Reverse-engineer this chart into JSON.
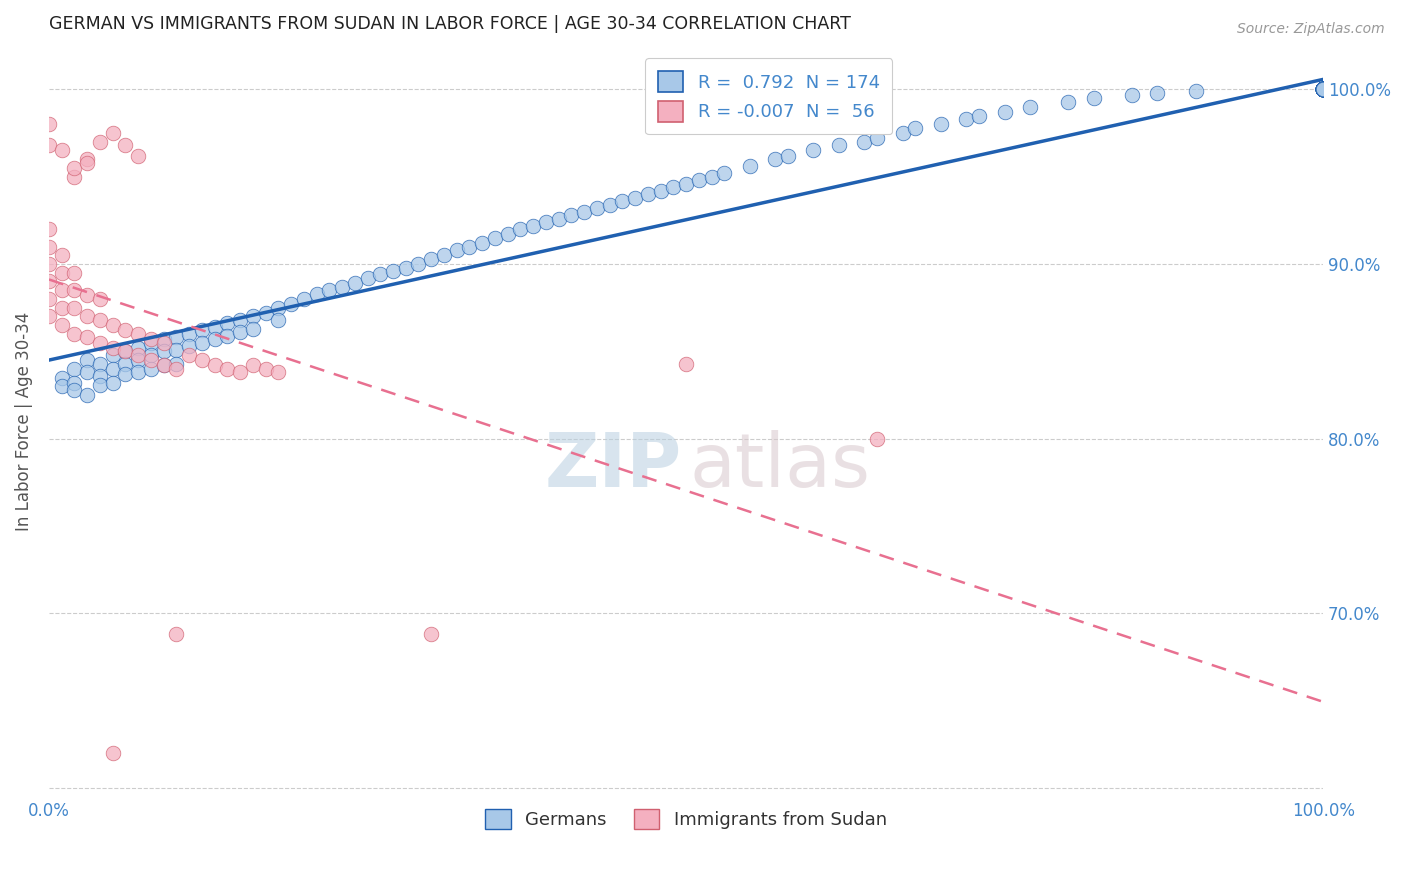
{
  "title": "GERMAN VS IMMIGRANTS FROM SUDAN IN LABOR FORCE | AGE 30-34 CORRELATION CHART",
  "source": "Source: ZipAtlas.com",
  "ylabel": "In Labor Force | Age 30-34",
  "legend_entries": [
    {
      "label": "R =  0.792  N = 174"
    },
    {
      "label": "R = -0.007  N =  56"
    }
  ],
  "legend_bottom": [
    "Germans",
    "Immigrants from Sudan"
  ],
  "german_color": "#a8c8e8",
  "sudan_color": "#f4b0c0",
  "trend_german_color": "#2060b0",
  "trend_sudan_color": "#e87090",
  "watermark_zip": "ZIP",
  "watermark_atlas": "atlas",
  "background_color": "#ffffff",
  "grid_color": "#cccccc",
  "title_color": "#222222",
  "axis_label_color": "#555555",
  "right_axis_color": "#4488cc",
  "bottom_axis_color": "#4488cc",
  "legend_text_color": "#4488cc",
  "xlim": [
    0.0,
    1.0
  ],
  "ylim": [
    0.595,
    1.025
  ],
  "german_x": [
    0.01,
    0.01,
    0.02,
    0.02,
    0.02,
    0.03,
    0.03,
    0.03,
    0.04,
    0.04,
    0.04,
    0.05,
    0.05,
    0.05,
    0.06,
    0.06,
    0.06,
    0.07,
    0.07,
    0.07,
    0.08,
    0.08,
    0.08,
    0.09,
    0.09,
    0.09,
    0.1,
    0.1,
    0.1,
    0.11,
    0.11,
    0.12,
    0.12,
    0.13,
    0.13,
    0.14,
    0.14,
    0.15,
    0.15,
    0.16,
    0.16,
    0.17,
    0.18,
    0.18,
    0.19,
    0.2,
    0.21,
    0.22,
    0.23,
    0.24,
    0.25,
    0.26,
    0.27,
    0.28,
    0.29,
    0.3,
    0.31,
    0.32,
    0.33,
    0.34,
    0.35,
    0.36,
    0.37,
    0.38,
    0.39,
    0.4,
    0.41,
    0.42,
    0.43,
    0.44,
    0.45,
    0.46,
    0.47,
    0.48,
    0.49,
    0.5,
    0.51,
    0.52,
    0.53,
    0.55,
    0.57,
    0.58,
    0.6,
    0.62,
    0.64,
    0.65,
    0.67,
    0.68,
    0.7,
    0.72,
    0.73,
    0.75,
    0.77,
    0.8,
    0.82,
    0.85,
    0.87,
    0.9,
    1.0,
    1.0,
    1.0,
    1.0,
    1.0,
    1.0,
    1.0,
    1.0,
    1.0,
    1.0,
    1.0,
    1.0,
    1.0,
    1.0,
    1.0,
    1.0,
    1.0,
    1.0,
    1.0,
    1.0,
    1.0,
    1.0,
    1.0,
    1.0,
    1.0,
    1.0,
    1.0,
    1.0,
    1.0,
    1.0,
    1.0,
    1.0,
    1.0,
    1.0,
    1.0,
    1.0,
    1.0,
    1.0,
    1.0,
    1.0,
    1.0,
    1.0,
    1.0,
    1.0,
    1.0,
    1.0,
    1.0,
    1.0,
    1.0,
    1.0,
    1.0,
    1.0,
    1.0,
    1.0,
    1.0,
    1.0,
    1.0,
    1.0,
    1.0,
    1.0,
    1.0,
    1.0,
    1.0,
    1.0,
    1.0,
    1.0,
    1.0,
    1.0,
    1.0,
    1.0,
    1.0,
    1.0,
    1.0,
    1.0,
    1.0,
    1.0
  ],
  "german_y": [
    0.835,
    0.83,
    0.84,
    0.832,
    0.828,
    0.845,
    0.838,
    0.825,
    0.843,
    0.836,
    0.831,
    0.848,
    0.84,
    0.832,
    0.85,
    0.843,
    0.837,
    0.852,
    0.845,
    0.838,
    0.855,
    0.848,
    0.84,
    0.857,
    0.85,
    0.842,
    0.858,
    0.851,
    0.843,
    0.86,
    0.853,
    0.862,
    0.855,
    0.864,
    0.857,
    0.866,
    0.859,
    0.868,
    0.861,
    0.87,
    0.863,
    0.872,
    0.875,
    0.868,
    0.877,
    0.88,
    0.883,
    0.885,
    0.887,
    0.889,
    0.892,
    0.894,
    0.896,
    0.898,
    0.9,
    0.903,
    0.905,
    0.908,
    0.91,
    0.912,
    0.915,
    0.917,
    0.92,
    0.922,
    0.924,
    0.926,
    0.928,
    0.93,
    0.932,
    0.934,
    0.936,
    0.938,
    0.94,
    0.942,
    0.944,
    0.946,
    0.948,
    0.95,
    0.952,
    0.956,
    0.96,
    0.962,
    0.965,
    0.968,
    0.97,
    0.972,
    0.975,
    0.978,
    0.98,
    0.983,
    0.985,
    0.987,
    0.99,
    0.993,
    0.995,
    0.997,
    0.998,
    0.999,
    1.0,
    1.0,
    1.0,
    1.0,
    1.0,
    1.0,
    1.0,
    1.0,
    1.0,
    1.0,
    1.0,
    1.0,
    1.0,
    1.0,
    1.0,
    1.0,
    1.0,
    1.0,
    1.0,
    1.0,
    1.0,
    1.0,
    1.0,
    1.0,
    1.0,
    1.0,
    1.0,
    1.0,
    1.0,
    1.0,
    1.0,
    1.0,
    1.0,
    1.0,
    1.0,
    1.0,
    1.0,
    1.0,
    1.0,
    1.0,
    1.0,
    1.0,
    1.0,
    1.0,
    1.0,
    1.0,
    1.0,
    1.0,
    1.0,
    1.0,
    1.0,
    1.0,
    1.0,
    1.0,
    1.0,
    1.0,
    1.0,
    1.0,
    1.0,
    1.0,
    1.0,
    1.0,
    1.0,
    1.0,
    1.0,
    1.0,
    1.0,
    1.0,
    1.0,
    1.0,
    1.0,
    1.0,
    1.0,
    1.0,
    1.0,
    1.0
  ],
  "sudan_x": [
    0.0,
    0.0,
    0.0,
    0.0,
    0.0,
    0.0,
    0.01,
    0.01,
    0.01,
    0.01,
    0.01,
    0.02,
    0.02,
    0.02,
    0.02,
    0.03,
    0.03,
    0.03,
    0.04,
    0.04,
    0.04,
    0.05,
    0.05,
    0.06,
    0.06,
    0.07,
    0.07,
    0.08,
    0.08,
    0.09,
    0.09,
    0.1,
    0.11,
    0.12,
    0.13,
    0.14,
    0.15,
    0.16,
    0.17,
    0.18,
    0.02,
    0.03,
    0.04,
    0.05,
    0.06,
    0.07,
    0.0,
    0.0,
    0.01,
    0.02,
    0.03,
    0.5,
    0.65,
    0.3,
    0.1,
    0.05
  ],
  "sudan_y": [
    0.87,
    0.88,
    0.89,
    0.9,
    0.91,
    0.92,
    0.865,
    0.875,
    0.885,
    0.895,
    0.905,
    0.86,
    0.875,
    0.885,
    0.895,
    0.858,
    0.87,
    0.882,
    0.855,
    0.868,
    0.88,
    0.852,
    0.865,
    0.85,
    0.862,
    0.848,
    0.86,
    0.845,
    0.857,
    0.842,
    0.855,
    0.84,
    0.848,
    0.845,
    0.842,
    0.84,
    0.838,
    0.842,
    0.84,
    0.838,
    0.95,
    0.96,
    0.97,
    0.975,
    0.968,
    0.962,
    0.968,
    0.98,
    0.965,
    0.955,
    0.958,
    0.843,
    0.8,
    0.688,
    0.688,
    0.62
  ]
}
